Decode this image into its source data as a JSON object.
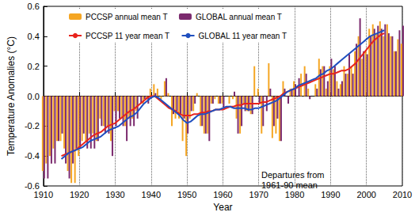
{
  "chart_data": {
    "type": "bar",
    "x_label": "Year",
    "y_label": "Temperature Anomalies (°C)",
    "annotations": [
      {
        "text": "Departures from\n1961-90 mean"
      }
    ],
    "x": [
      1910,
      1911,
      1912,
      1913,
      1914,
      1915,
      1916,
      1917,
      1918,
      1919,
      1920,
      1921,
      1922,
      1923,
      1924,
      1925,
      1926,
      1927,
      1928,
      1929,
      1930,
      1931,
      1932,
      1933,
      1934,
      1935,
      1936,
      1937,
      1938,
      1939,
      1940,
      1941,
      1942,
      1943,
      1944,
      1945,
      1946,
      1947,
      1948,
      1949,
      1950,
      1951,
      1952,
      1953,
      1954,
      1955,
      1956,
      1957,
      1958,
      1959,
      1960,
      1961,
      1962,
      1963,
      1964,
      1965,
      1966,
      1967,
      1968,
      1969,
      1970,
      1971,
      1972,
      1973,
      1974,
      1975,
      1976,
      1977,
      1978,
      1979,
      1980,
      1981,
      1982,
      1983,
      1984,
      1985,
      1986,
      1987,
      1988,
      1989,
      1990,
      1991,
      1992,
      1993,
      1994,
      1995,
      1996,
      1997,
      1998,
      1999,
      2000,
      2001,
      2002,
      2003,
      2004,
      2005,
      2006,
      2007,
      2008,
      2009,
      2010
    ],
    "series": [
      {
        "name": "PCCSP annual mean T",
        "type": "bar",
        "color": "#f5a623",
        "values": [
          -0.5,
          -0.45,
          -0.4,
          -0.35,
          -0.3,
          -0.3,
          -0.35,
          -0.5,
          -0.58,
          -0.58,
          -0.4,
          -0.3,
          -0.3,
          -0.25,
          -0.25,
          -0.3,
          -0.15,
          -0.2,
          -0.2,
          -0.3,
          -0.1,
          -0.1,
          -0.15,
          -0.2,
          -0.15,
          -0.15,
          -0.1,
          0.0,
          -0.05,
          -0.02,
          0.05,
          0.08,
          0.05,
          -0.02,
          0.1,
          0.02,
          -0.2,
          -0.15,
          -0.15,
          -0.3,
          -0.4,
          -0.15,
          -0.1,
          0.02,
          -0.2,
          -0.25,
          -0.25,
          -0.05,
          -0.02,
          -0.05,
          -0.05,
          0.0,
          -0.05,
          -0.02,
          -0.15,
          -0.25,
          -0.05,
          -0.1,
          -0.12,
          0.2,
          0.05,
          -0.25,
          0.0,
          0.22,
          -0.28,
          -0.25,
          -0.3,
          0.1,
          0.0,
          0.05,
          0.1,
          0.0,
          0.15,
          0.2,
          0.05,
          0.0,
          0.08,
          0.25,
          0.2,
          0.05,
          0.2,
          0.18,
          0.1,
          0.08,
          0.2,
          0.15,
          0.2,
          0.3,
          0.4,
          0.25,
          0.3,
          0.45,
          0.48,
          0.42,
          0.5,
          0.4,
          0.48,
          0.4,
          0.3,
          0.38,
          0.35
        ]
      },
      {
        "name": "GLOBAL annual mean T",
        "type": "bar",
        "color": "#7b2a6e",
        "values": [
          -0.55,
          -0.55,
          -0.45,
          -0.45,
          -0.3,
          -0.25,
          -0.45,
          -0.55,
          -0.45,
          -0.35,
          -0.35,
          -0.25,
          -0.35,
          -0.35,
          -0.35,
          -0.3,
          -0.2,
          -0.25,
          -0.25,
          -0.4,
          -0.2,
          -0.15,
          -0.2,
          -0.3,
          -0.2,
          -0.2,
          -0.15,
          -0.05,
          -0.02,
          -0.05,
          0.0,
          0.02,
          0.0,
          0.0,
          0.12,
          0.0,
          -0.12,
          -0.1,
          -0.12,
          -0.15,
          -0.25,
          -0.1,
          -0.05,
          0.0,
          -0.2,
          -0.25,
          -0.3,
          -0.05,
          0.0,
          -0.05,
          -0.08,
          0.0,
          0.0,
          0.03,
          -0.25,
          -0.2,
          -0.1,
          -0.1,
          -0.12,
          0.0,
          -0.05,
          -0.2,
          -0.1,
          0.05,
          -0.2,
          -0.15,
          -0.3,
          0.05,
          -0.05,
          0.05,
          0.08,
          0.12,
          0.0,
          0.15,
          -0.02,
          0.0,
          0.05,
          0.18,
          0.2,
          0.1,
          0.25,
          0.2,
          0.05,
          0.1,
          0.15,
          0.28,
          0.15,
          0.35,
          0.52,
          0.3,
          0.28,
          0.4,
          0.45,
          0.47,
          0.45,
          0.48,
          0.42,
          0.4,
          0.3,
          0.44,
          0.47
        ]
      },
      {
        "name": "PCCSP 11 year mean T",
        "type": "line",
        "color": "#e8231c",
        "values": [
          null,
          null,
          null,
          null,
          null,
          -0.4,
          -0.39,
          -0.38,
          -0.37,
          -0.36,
          -0.34,
          -0.32,
          -0.3,
          -0.28,
          -0.26,
          -0.25,
          -0.24,
          -0.22,
          -0.2,
          -0.19,
          -0.18,
          -0.16,
          -0.14,
          -0.12,
          -0.1,
          -0.09,
          -0.07,
          -0.05,
          -0.03,
          -0.01,
          0.0,
          0.0,
          -0.02,
          -0.04,
          -0.06,
          -0.08,
          -0.09,
          -0.1,
          -0.12,
          -0.13,
          -0.13,
          -0.13,
          -0.12,
          -0.12,
          -0.11,
          -0.11,
          -0.1,
          -0.1,
          -0.09,
          -0.09,
          -0.09,
          -0.08,
          -0.07,
          -0.07,
          -0.06,
          -0.06,
          -0.05,
          -0.05,
          -0.05,
          -0.05,
          -0.05,
          -0.04,
          -0.04,
          -0.03,
          -0.02,
          -0.01,
          0.0,
          0.02,
          0.03,
          0.04,
          0.05,
          0.06,
          0.07,
          0.08,
          0.09,
          0.1,
          0.11,
          0.12,
          0.13,
          0.14,
          0.15,
          0.15,
          0.16,
          0.17,
          0.17,
          0.18,
          0.2,
          0.22,
          0.25,
          0.28,
          0.31,
          0.34,
          0.37,
          0.39,
          0.41,
          0.42,
          null,
          null,
          null,
          null,
          null
        ]
      },
      {
        "name": "GLOBAL 11 year mean T",
        "type": "line",
        "color": "#1f4fbf",
        "values": [
          null,
          null,
          null,
          null,
          null,
          -0.42,
          -0.4,
          -0.38,
          -0.37,
          -0.36,
          -0.35,
          -0.34,
          -0.32,
          -0.3,
          -0.29,
          -0.28,
          -0.27,
          -0.25,
          -0.23,
          -0.22,
          -0.21,
          -0.2,
          -0.18,
          -0.16,
          -0.14,
          -0.13,
          -0.11,
          -0.08,
          -0.05,
          -0.03,
          -0.01,
          0.0,
          -0.01,
          -0.03,
          -0.05,
          -0.07,
          -0.09,
          -0.11,
          -0.13,
          -0.16,
          -0.18,
          -0.17,
          -0.15,
          -0.13,
          -0.12,
          -0.12,
          -0.11,
          -0.1,
          -0.09,
          -0.09,
          -0.08,
          -0.07,
          -0.07,
          -0.08,
          -0.08,
          -0.08,
          -0.08,
          -0.09,
          -0.09,
          -0.08,
          -0.08,
          -0.07,
          -0.06,
          -0.05,
          -0.04,
          -0.03,
          -0.01,
          0.01,
          0.03,
          0.04,
          0.05,
          0.07,
          0.08,
          0.09,
          0.1,
          0.11,
          0.12,
          0.14,
          0.15,
          0.17,
          0.18,
          0.2,
          0.22,
          0.24,
          0.26,
          0.28,
          0.3,
          0.32,
          0.34,
          0.36,
          0.38,
          0.4,
          0.41,
          0.42,
          0.43,
          0.44,
          null,
          null,
          null,
          null,
          null
        ]
      }
    ],
    "xlim": [
      1910,
      2010
    ],
    "xticks": [
      1910,
      1920,
      1930,
      1940,
      1950,
      1960,
      1970,
      1980,
      1990,
      2000,
      2010
    ],
    "ylim": [
      -0.6,
      0.6
    ],
    "yticks": [
      -0.6,
      -0.4,
      -0.2,
      {
        "value": 0,
        "label": "0.0"
      },
      0.2,
      0.4,
      0.6
    ],
    "grid": "x",
    "legend": "upper left"
  }
}
